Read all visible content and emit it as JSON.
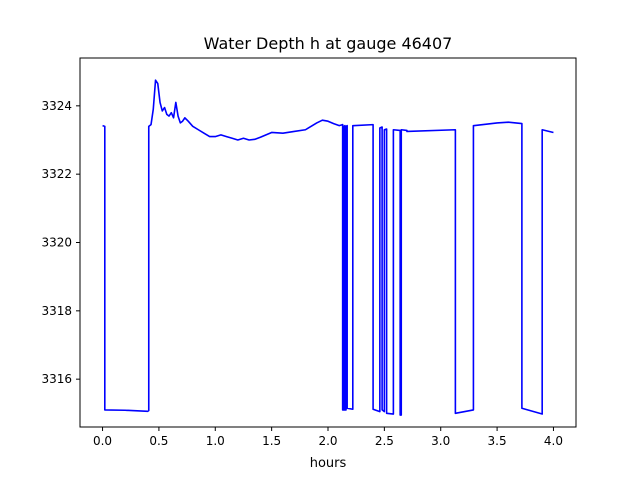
{
  "chart_data": {
    "type": "line",
    "title": "Water Depth h at gauge 46407",
    "xlabel": "hours",
    "ylabel": "",
    "xlim": [
      -0.2,
      4.2
    ],
    "ylim": [
      3314.6,
      3325.4
    ],
    "grid": false,
    "x_ticks": [
      0.0,
      0.5,
      1.0,
      1.5,
      2.0,
      2.5,
      3.0,
      3.5,
      4.0
    ],
    "x_tick_labels": [
      "0.0",
      "0.5",
      "1.0",
      "1.5",
      "2.0",
      "2.5",
      "3.0",
      "3.5",
      "4.0"
    ],
    "y_ticks": [
      3316,
      3318,
      3320,
      3322,
      3324
    ],
    "y_tick_labels": [
      "3316",
      "3318",
      "3320",
      "3322",
      "3324"
    ],
    "series": [
      {
        "color": "#0000ff",
        "x": [
          0.0,
          0.02,
          0.02,
          0.2,
          0.4,
          0.41,
          0.41,
          0.43,
          0.45,
          0.47,
          0.49,
          0.51,
          0.53,
          0.55,
          0.57,
          0.59,
          0.61,
          0.63,
          0.65,
          0.67,
          0.69,
          0.71,
          0.73,
          0.76,
          0.8,
          0.85,
          0.9,
          0.95,
          1.0,
          1.05,
          1.1,
          1.15,
          1.2,
          1.25,
          1.3,
          1.35,
          1.4,
          1.45,
          1.5,
          1.6,
          1.7,
          1.8,
          1.9,
          1.95,
          2.0,
          2.05,
          2.1,
          2.13,
          2.13,
          2.14,
          2.14,
          2.15,
          2.15,
          2.16,
          2.16,
          2.17,
          2.17,
          2.22,
          2.22,
          2.4,
          2.4,
          2.46,
          2.46,
          2.48,
          2.48,
          2.5,
          2.5,
          2.52,
          2.52,
          2.58,
          2.58,
          2.64,
          2.64,
          2.65,
          2.65,
          2.7,
          2.7,
          3.13,
          3.13,
          3.29,
          3.29,
          3.5,
          3.6,
          3.72,
          3.72,
          3.9,
          3.9,
          4.0
        ],
        "y": [
          3323.42,
          3323.4,
          3315.1,
          3315.09,
          3315.06,
          3315.08,
          3323.4,
          3323.45,
          3323.9,
          3324.75,
          3324.65,
          3324.1,
          3323.85,
          3323.95,
          3323.75,
          3323.7,
          3323.8,
          3323.65,
          3324.1,
          3323.7,
          3323.5,
          3323.55,
          3323.65,
          3323.55,
          3323.4,
          3323.3,
          3323.2,
          3323.1,
          3323.1,
          3323.15,
          3323.1,
          3323.05,
          3323.0,
          3323.05,
          3323.0,
          3323.02,
          3323.08,
          3323.15,
          3323.22,
          3323.2,
          3323.25,
          3323.3,
          3323.5,
          3323.58,
          3323.55,
          3323.48,
          3323.42,
          3323.45,
          3315.1,
          3315.1,
          3323.4,
          3323.42,
          3315.1,
          3315.1,
          3323.4,
          3323.42,
          3315.15,
          3315.12,
          3323.42,
          3323.45,
          3315.12,
          3315.05,
          3323.35,
          3323.38,
          3315.1,
          3315.05,
          3323.3,
          3323.32,
          3315.0,
          3314.98,
          3323.3,
          3323.28,
          3314.95,
          3314.95,
          3323.3,
          3323.28,
          3323.25,
          3323.3,
          3315.0,
          3315.1,
          3323.42,
          3323.5,
          3323.52,
          3323.48,
          3315.15,
          3314.98,
          3323.3,
          3323.22
        ]
      }
    ]
  }
}
